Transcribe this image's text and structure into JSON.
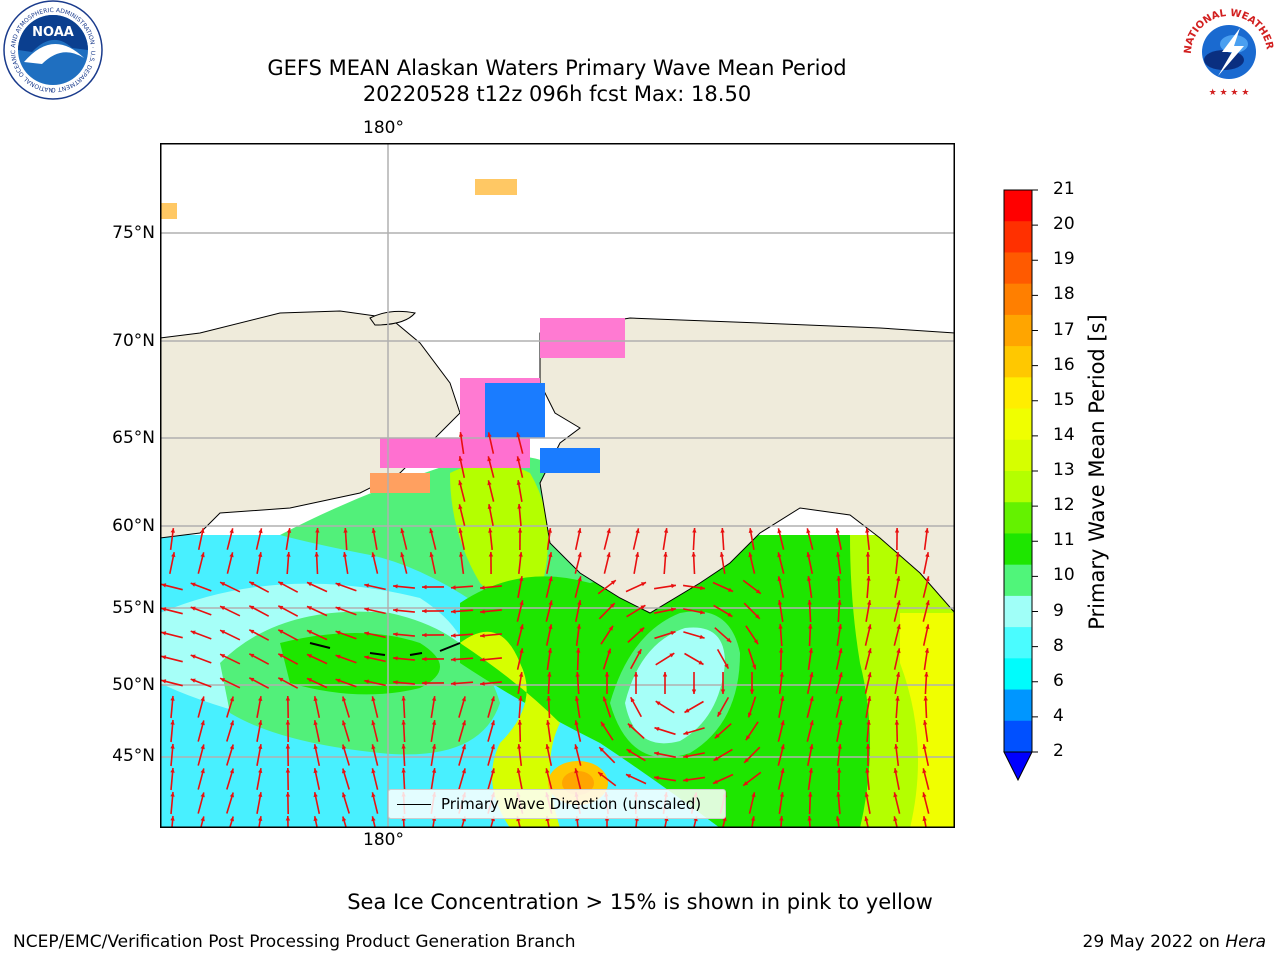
{
  "title": {
    "line1": "GEFS MEAN Alaskan Waters Primary Wave Mean Period",
    "line2": "20220528 t12z 096h fcst   Max: 18.50"
  },
  "logos": {
    "noaa_text": "NOAA",
    "noaa_ring": "NATIONAL OCEANIC AND ATMOSPHERIC ADMINISTRATION · U.S. DEPARTMENT OF COMMERCE",
    "nws_ring": "NATIONAL WEATHER SERVICE"
  },
  "map": {
    "lon_label_top": "180°",
    "lon_label_bottom": "180°",
    "lat_labels": [
      "75°N",
      "70°N",
      "65°N",
      "60°N",
      "55°N",
      "50°N",
      "45°N"
    ]
  },
  "legend": {
    "label": "Primary Wave Direction (unscaled)"
  },
  "colorbar": {
    "label": "Primary Wave Mean Period [s]",
    "ticks": [
      "21",
      "20",
      "19",
      "18",
      "17",
      "16",
      "15",
      "14",
      "13",
      "12",
      "11",
      "10",
      "9",
      "8",
      "6",
      "4",
      "2"
    ],
    "colors": [
      "#ff0000",
      "#ff3000",
      "#ff5a00",
      "#ff7f00",
      "#ffa500",
      "#ffc800",
      "#ffee00",
      "#f0ff00",
      "#d6ff00",
      "#b4ff00",
      "#64f200",
      "#1ee600",
      "#50f57a",
      "#a0fff8",
      "#4afcff",
      "#00fcfc",
      "#0096ff",
      "#0050ff"
    ],
    "extend_color": "#0000ff"
  },
  "notes": {
    "sea_ice": "Sea Ice Concentration > 15% is shown in pink to yellow"
  },
  "footer": {
    "left": "NCEP/EMC/Verification Post Processing Product Generation Branch",
    "right_prefix": "29 May 2022 on ",
    "right_machine": "Hera"
  }
}
